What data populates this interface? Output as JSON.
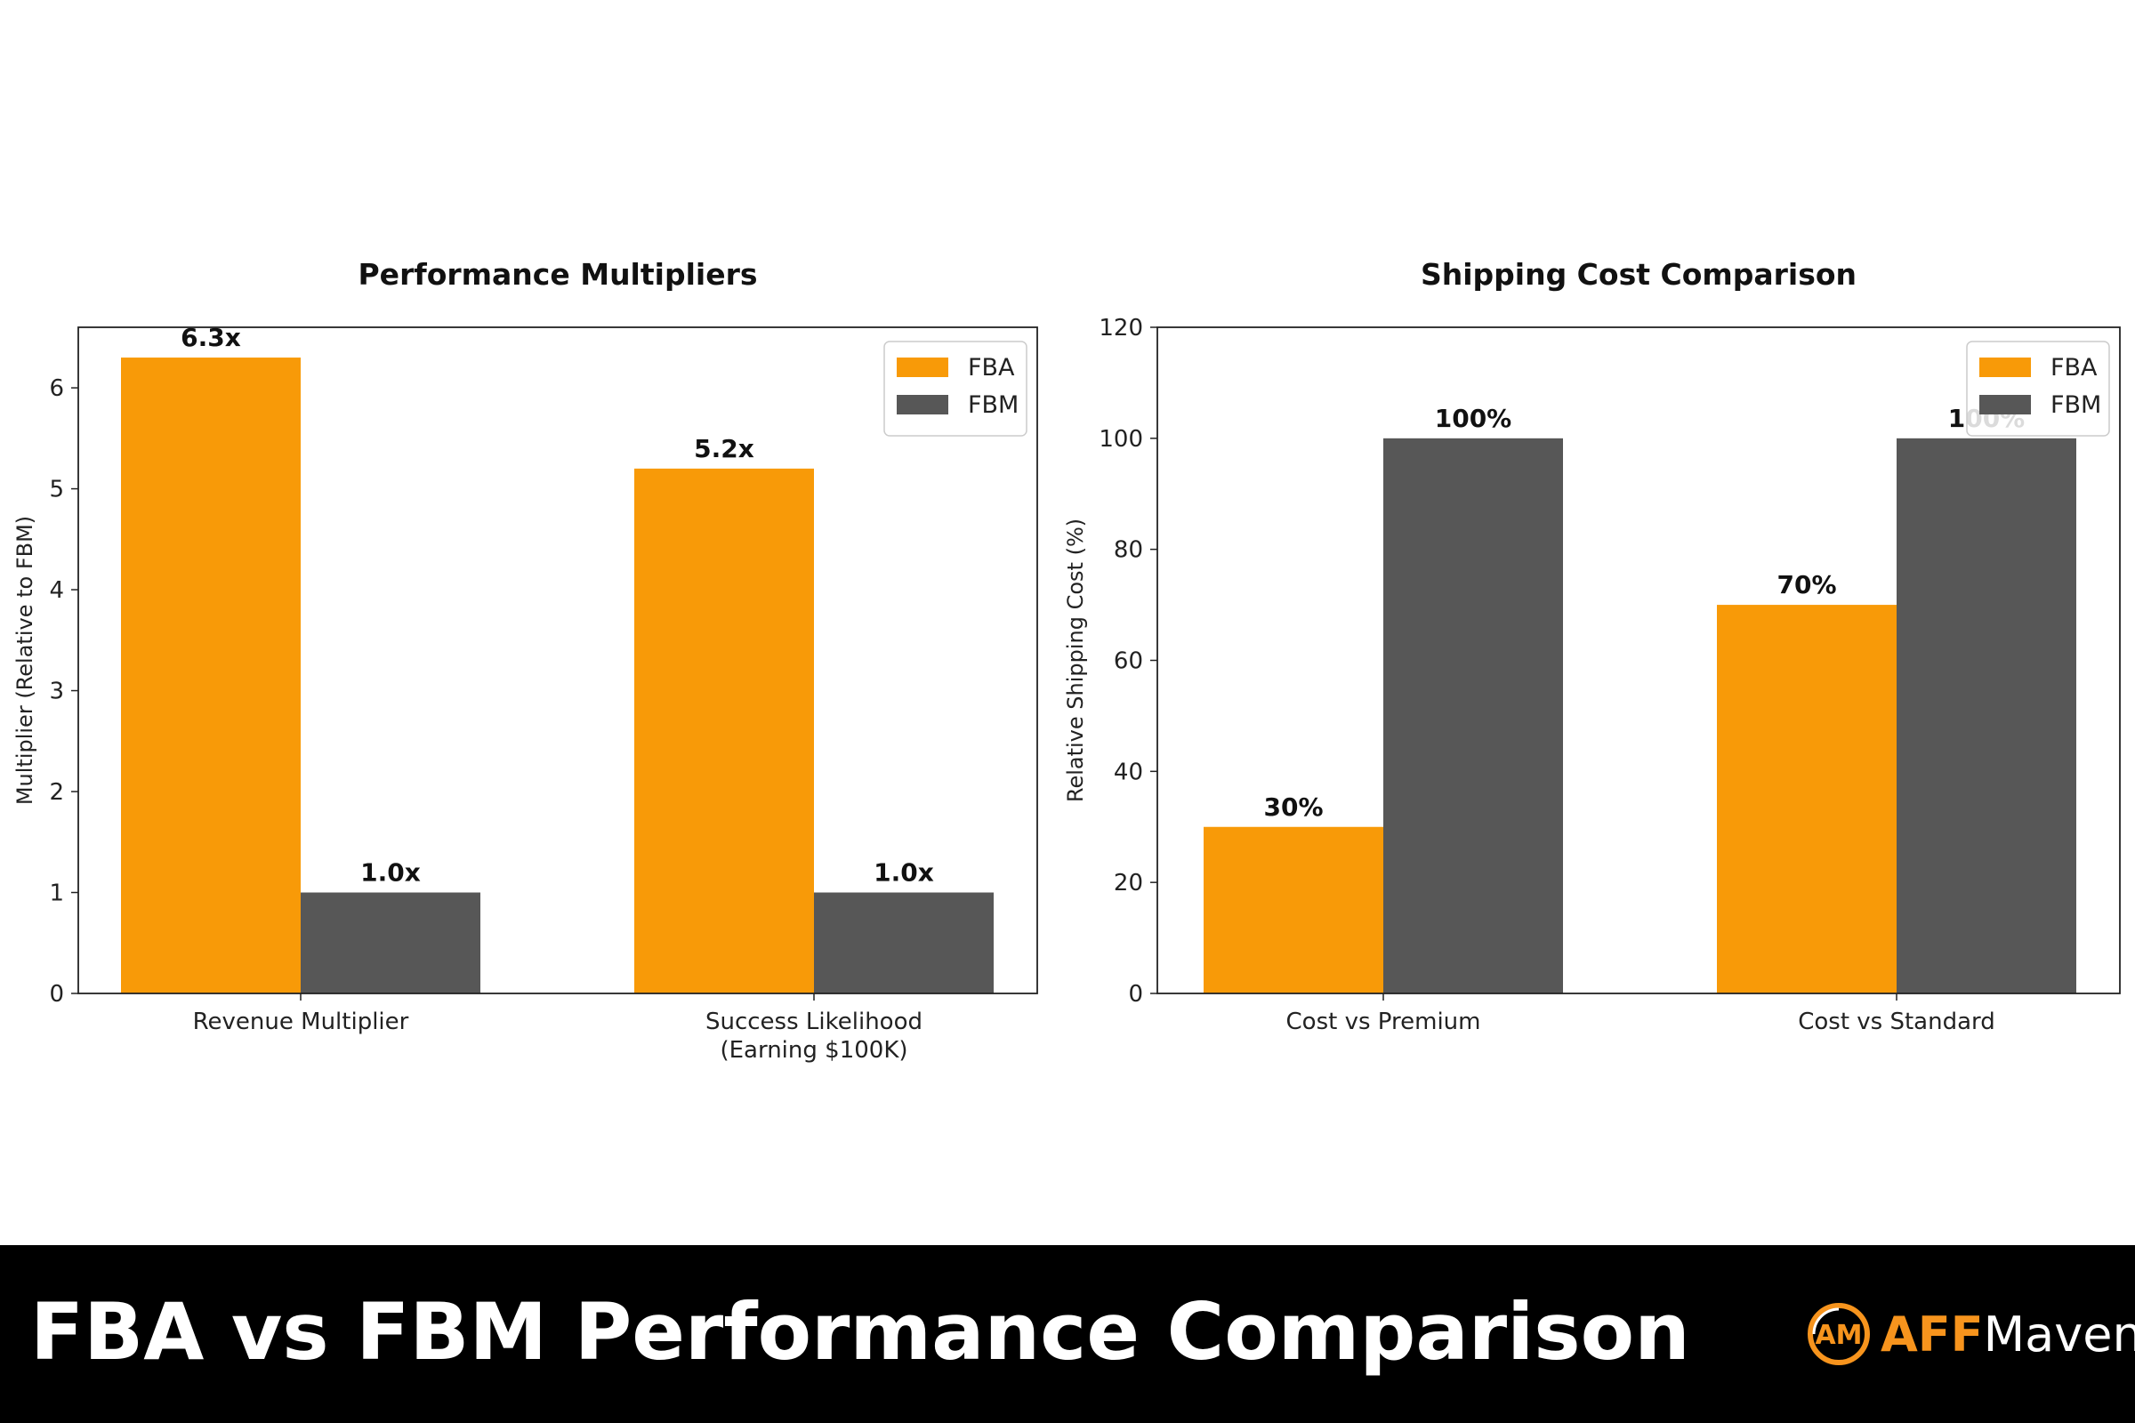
{
  "footer": {
    "title": "FBA vs FBM Performance Comparison",
    "brand_aff": "AFF",
    "brand_maven": "Maven",
    "brand_logo_text": "AM"
  },
  "colors": {
    "fba": "#f89a08",
    "fbm": "#575757",
    "accent": "#f7941d"
  },
  "chart_data": [
    {
      "type": "bar",
      "title": "Performance Multipliers",
      "ylabel": "Multiplier (Relative to FBM)",
      "xlabel": "",
      "categories": [
        [
          "Revenue Multiplier"
        ],
        [
          "Success Likelihood",
          "(Earning $100K)"
        ]
      ],
      "series": [
        {
          "name": "FBA",
          "values": [
            6.3,
            5.2
          ],
          "labels": [
            "6.3x",
            "5.2x"
          ]
        },
        {
          "name": "FBM",
          "values": [
            1.0,
            1.0
          ],
          "labels": [
            "1.0x",
            "1.0x"
          ]
        }
      ],
      "ylim": [
        0,
        6.6
      ],
      "yticks": [
        0,
        1,
        2,
        3,
        4,
        5,
        6
      ],
      "legend": "top-right",
      "grid": false
    },
    {
      "type": "bar",
      "title": "Shipping Cost Comparison",
      "ylabel": "Relative Shipping Cost (%)",
      "xlabel": "",
      "categories": [
        [
          "Cost vs Premium"
        ],
        [
          "Cost vs Standard"
        ]
      ],
      "series": [
        {
          "name": "FBA",
          "values": [
            30,
            70
          ],
          "labels": [
            "30%",
            "70%"
          ]
        },
        {
          "name": "FBM",
          "values": [
            100,
            100
          ],
          "labels": [
            "100%",
            "100%"
          ]
        }
      ],
      "ylim": [
        0,
        120
      ],
      "yticks": [
        0,
        20,
        40,
        60,
        80,
        100,
        120
      ],
      "legend": "top-right",
      "grid": false
    }
  ]
}
